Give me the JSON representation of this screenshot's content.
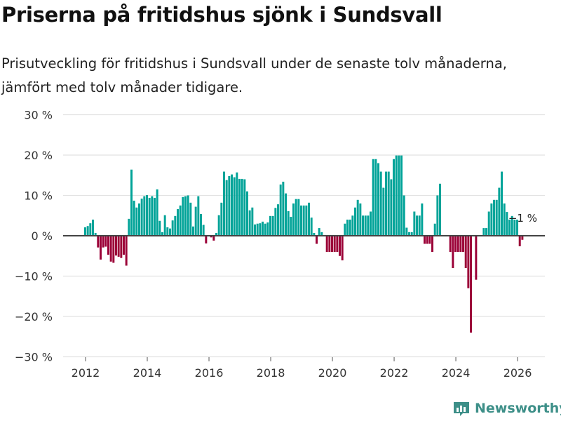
{
  "header": {
    "title": "Priserna på fritidshus sjönk i Sundsvall",
    "subtitle": "Prisutveckling för fritidshus i Sundsvall under de senaste tolv månaderna, jämfört med tolv månader tidigare."
  },
  "brand": {
    "name": "Newsworthy"
  },
  "colors": {
    "positive": "#00a398",
    "negative": "#9b0037",
    "grid": "#e2e2e2",
    "axis": "#444444"
  },
  "chart_data": {
    "type": "bar",
    "title": "Priserna på fritidshus sjönk i Sundsvall",
    "xlabel": "",
    "ylabel": "",
    "x_start": "2012-01",
    "frequency": "monthly",
    "unit": "%",
    "ylim": [
      -30,
      30
    ],
    "y_ticks": [
      30,
      20,
      10,
      0,
      -10,
      -20,
      -30
    ],
    "y_tick_labels": [
      "30 %",
      "20 %",
      "10 %",
      "0 %",
      "−10 %",
      "−20 %",
      "−30 %"
    ],
    "x_ticks": [
      "2012",
      "2014",
      "2016",
      "2018",
      "2020",
      "2022",
      "2024",
      "2026"
    ],
    "grid": true,
    "annotation": {
      "text": "−1 %",
      "target": "last"
    },
    "values": [
      2.1,
      2.4,
      3.1,
      4.0,
      0.7,
      -2.9,
      -5.9,
      -2.9,
      -2.7,
      -4.7,
      -6.4,
      -6.7,
      -4.9,
      -5.2,
      -5.5,
      -4.7,
      -7.4,
      4.2,
      16.4,
      8.7,
      7.0,
      8.0,
      9.2,
      9.8,
      10.1,
      9.4,
      9.8,
      9.4,
      11.5,
      3.7,
      0.9,
      5.1,
      2.1,
      1.8,
      3.8,
      4.9,
      6.6,
      7.5,
      9.6,
      9.8,
      10.0,
      8.2,
      2.3,
      7.2,
      9.8,
      5.4,
      2.7,
      -1.9,
      null,
      -0.4,
      -1.2,
      0.7,
      5.1,
      8.2,
      15.9,
      13.8,
      14.8,
      15.2,
      14.5,
      15.7,
      14.1,
      14.1,
      14.0,
      11.0,
      6.3,
      7.0,
      2.8,
      3.0,
      3.1,
      3.5,
      3.0,
      3.3,
      4.9,
      4.9,
      6.9,
      7.8,
      12.7,
      13.4,
      10.5,
      6.1,
      4.7,
      8.0,
      9.1,
      9.1,
      7.5,
      7.5,
      7.5,
      8.2,
      4.5,
      0.7,
      -2.0,
      1.9,
      0.9,
      null,
      -4.0,
      -4.0,
      -4.0,
      -4.0,
      -4.0,
      -5.0,
      -6.1,
      3.0,
      4.0,
      4.0,
      5.0,
      7.0,
      8.9,
      8.0,
      5.0,
      5.0,
      5.0,
      6.0,
      19.0,
      19.0,
      18.0,
      15.9,
      11.9,
      15.9,
      15.9,
      14.0,
      19.0,
      19.9,
      19.9,
      19.9,
      10.0,
      2.0,
      0.9,
      0.9,
      6.0,
      5.0,
      5.0,
      8.0,
      -2.0,
      -2.0,
      -2.0,
      -4.0,
      3.0,
      10.0,
      12.9,
      null,
      null,
      null,
      -4.0,
      -8.0,
      -4.0,
      -4.0,
      -4.0,
      -4.0,
      -8.0,
      -13.0,
      -24.0,
      null,
      -10.9,
      null,
      null,
      1.9,
      1.9,
      6.0,
      8.0,
      8.9,
      8.9,
      11.9,
      15.9,
      8.0,
      5.9,
      4.0,
      4.9,
      4.0,
      4.0,
      -2.6,
      -1.0
    ]
  }
}
